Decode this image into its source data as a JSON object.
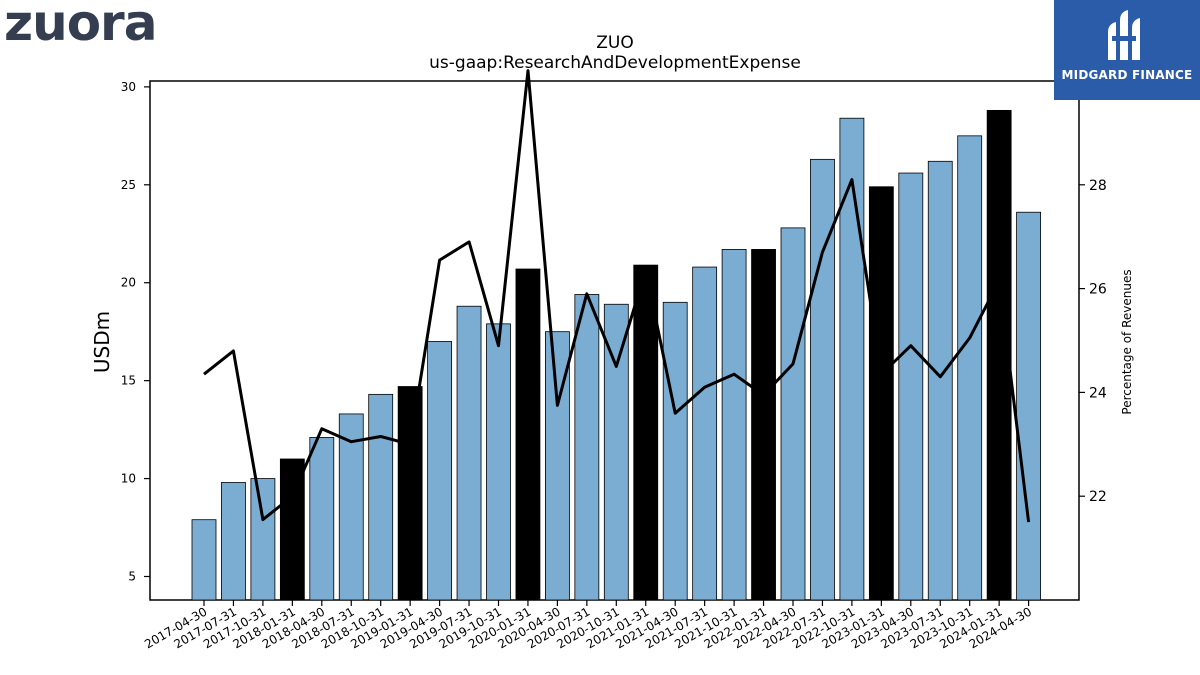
{
  "logos": {
    "left": "zuora",
    "right": "MIDGARD FINANCE"
  },
  "chart_data": {
    "type": "bar",
    "title": "ZUO",
    "subtitle": "us-gaap:ResearchAndDevelopmentExpense",
    "ylabel": "USDm",
    "ylabel_right": "Percentage of Revenues",
    "ylim": [
      3.8,
      30.3
    ],
    "ylim_right": [
      20.0,
      30.0
    ],
    "yticks": [
      5,
      10,
      15,
      20,
      25,
      30
    ],
    "yticks_right": [
      22,
      24,
      26,
      28
    ],
    "grid": false,
    "categories": [
      "2017-04-30",
      "2017-07-31",
      "2017-10-31",
      "2018-01-31",
      "2018-04-30",
      "2018-07-31",
      "2018-10-31",
      "2019-01-31",
      "2019-04-30",
      "2019-07-31",
      "2019-10-31",
      "2020-01-31",
      "2020-04-30",
      "2020-07-31",
      "2020-10-31",
      "2021-01-31",
      "2021-04-30",
      "2021-07-31",
      "2021-10-31",
      "2022-01-31",
      "2022-04-30",
      "2022-07-31",
      "2022-10-31",
      "2023-01-31",
      "2023-04-30",
      "2023-07-31",
      "2023-10-31",
      "2024-01-31",
      "2024-04-30"
    ],
    "series": [
      {
        "kind": "bar",
        "values": [
          7.9,
          9.8,
          10.0,
          11.0,
          12.1,
          13.3,
          14.3,
          14.7,
          17.0,
          18.8,
          17.9,
          20.7,
          17.5,
          19.4,
          18.9,
          20.9,
          19.0,
          20.8,
          21.7,
          21.7,
          22.8,
          26.3,
          28.4,
          24.9,
          25.6,
          26.2,
          27.5,
          28.8,
          23.6
        ],
        "highlight": [
          false,
          false,
          false,
          true,
          false,
          false,
          false,
          true,
          false,
          false,
          false,
          true,
          false,
          false,
          false,
          true,
          false,
          false,
          false,
          true,
          false,
          false,
          false,
          true,
          false,
          false,
          false,
          true,
          false
        ],
        "color": "#7badd3",
        "highlight_color": "#000000"
      },
      {
        "kind": "line",
        "axis": "right",
        "values": [
          24.35,
          24.8,
          21.55,
          22.0,
          23.3,
          23.05,
          23.15,
          23.0,
          26.55,
          26.9,
          24.9,
          30.2,
          23.75,
          25.9,
          24.5,
          26.35,
          23.6,
          24.1,
          24.35,
          23.95,
          24.55,
          26.7,
          28.1,
          24.35,
          24.9,
          24.3,
          25.05,
          26.15,
          21.5
        ],
        "color": "#000000"
      }
    ]
  }
}
